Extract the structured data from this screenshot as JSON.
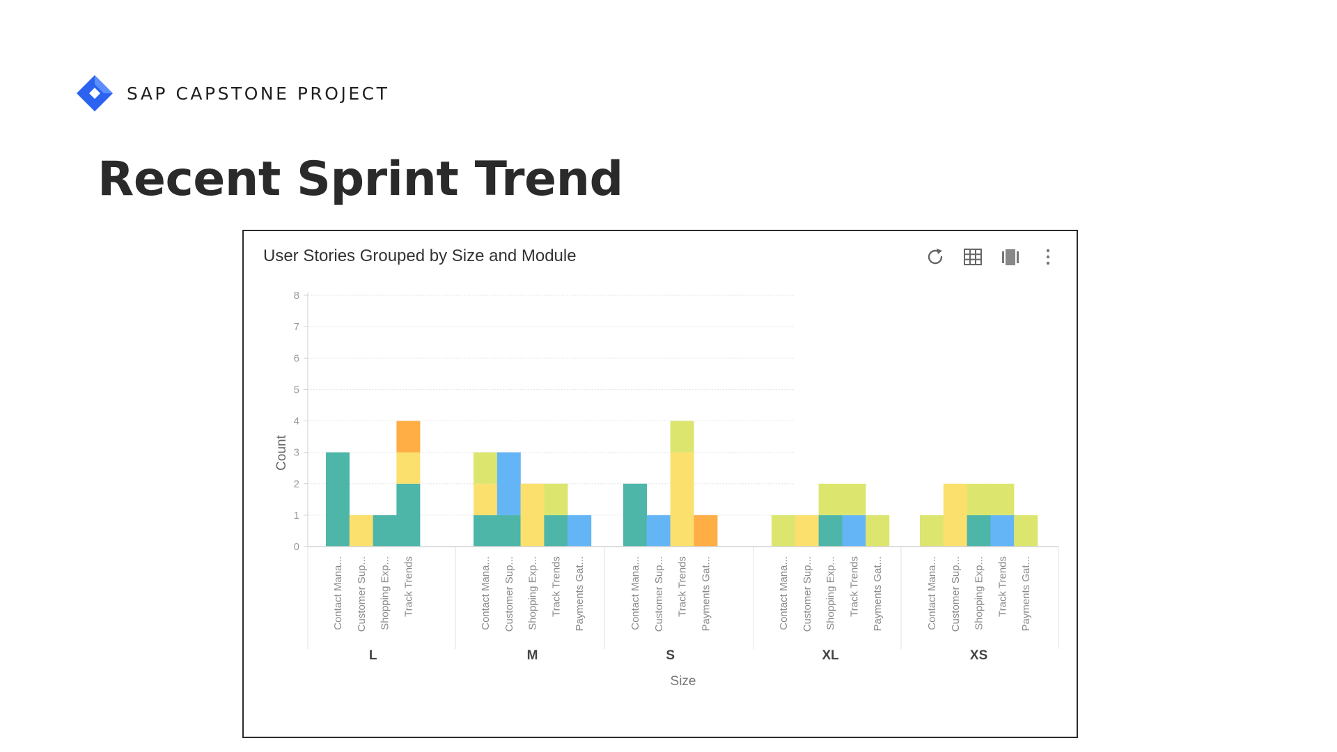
{
  "brand": {
    "name": "SAP CAPSTONE PROJECT",
    "logo_icon": "diamond-logo-icon"
  },
  "slide": {
    "title": "Recent Sprint Trend"
  },
  "card": {
    "title": "User Stories Grouped by Size and Module",
    "toolbar": [
      {
        "name": "refresh-icon",
        "label": "Refresh"
      },
      {
        "name": "table-view-icon",
        "label": "Table view"
      },
      {
        "name": "chart-view-icon",
        "label": "Chart view"
      },
      {
        "name": "more-options-icon",
        "label": "More options"
      }
    ]
  },
  "chart_data": {
    "type": "bar",
    "stacked": true,
    "title": "User Stories Grouped by Size and Module",
    "xlabel": "Size",
    "ylabel": "Count",
    "ylim": [
      0,
      8
    ],
    "yticks": [
      0,
      1,
      2,
      3,
      4,
      5,
      6,
      7,
      8
    ],
    "grid": true,
    "segment_colors": [
      "#4db6a8",
      "#fbe06e",
      "#dce66e",
      "#ffad45",
      "#64b5f6"
    ],
    "groups": [
      {
        "label": "L",
        "bars": [
          {
            "label": "Contact Mana...",
            "segments": [
              {
                "value": 3,
                "color": "#4db6a8"
              }
            ]
          },
          {
            "label": "Customer Sup...",
            "segments": [
              {
                "value": 1,
                "color": "#fbe06e"
              }
            ]
          },
          {
            "label": "Shopping Exp...",
            "segments": [
              {
                "value": 1,
                "color": "#4db6a8"
              }
            ]
          },
          {
            "label": "Track Trends",
            "segments": [
              {
                "value": 2,
                "color": "#4db6a8"
              },
              {
                "value": 1,
                "color": "#fbe06e"
              },
              {
                "value": 1,
                "color": "#ffad45"
              }
            ]
          }
        ]
      },
      {
        "label": "M",
        "bars": [
          {
            "label": "Contact Mana...",
            "segments": [
              {
                "value": 1,
                "color": "#4db6a8"
              },
              {
                "value": 1,
                "color": "#fbe06e"
              },
              {
                "value": 1,
                "color": "#dce66e"
              }
            ]
          },
          {
            "label": "Customer Sup...",
            "segments": [
              {
                "value": 1,
                "color": "#4db6a8"
              },
              {
                "value": 2,
                "color": "#64b5f6"
              }
            ]
          },
          {
            "label": "Shopping Exp...",
            "segments": [
              {
                "value": 2,
                "color": "#fbe06e"
              }
            ]
          },
          {
            "label": "Track Trends",
            "segments": [
              {
                "value": 1,
                "color": "#4db6a8"
              },
              {
                "value": 1,
                "color": "#dce66e"
              }
            ]
          },
          {
            "label": "Payments Gat...",
            "segments": [
              {
                "value": 1,
                "color": "#64b5f6"
              }
            ]
          }
        ]
      },
      {
        "label": "S",
        "bars": [
          {
            "label": "Contact Mana...",
            "segments": [
              {
                "value": 2,
                "color": "#4db6a8"
              }
            ]
          },
          {
            "label": "Customer Sup...",
            "segments": [
              {
                "value": 1,
                "color": "#64b5f6"
              }
            ]
          },
          {
            "label": "Track Trends",
            "segments": [
              {
                "value": 3,
                "color": "#fbe06e"
              },
              {
                "value": 1,
                "color": "#dce66e"
              }
            ]
          },
          {
            "label": "Payments Gat...",
            "segments": [
              {
                "value": 1,
                "color": "#ffad45"
              }
            ]
          }
        ]
      },
      {
        "label": "XL",
        "bars": [
          {
            "label": "Contact Mana...",
            "segments": [
              {
                "value": 1,
                "color": "#dce66e"
              }
            ]
          },
          {
            "label": "Customer Sup...",
            "segments": [
              {
                "value": 1,
                "color": "#fbe06e"
              }
            ]
          },
          {
            "label": "Shopping Exp...",
            "segments": [
              {
                "value": 1,
                "color": "#4db6a8"
              },
              {
                "value": 1,
                "color": "#dce66e"
              }
            ]
          },
          {
            "label": "Track Trends",
            "segments": [
              {
                "value": 1,
                "color": "#64b5f6"
              },
              {
                "value": 1,
                "color": "#dce66e"
              }
            ]
          },
          {
            "label": "Payments Gat...",
            "segments": [
              {
                "value": 1,
                "color": "#dce66e"
              }
            ]
          }
        ]
      },
      {
        "label": "XS",
        "bars": [
          {
            "label": "Contact Mana...",
            "segments": [
              {
                "value": 1,
                "color": "#dce66e"
              }
            ]
          },
          {
            "label": "Customer Sup...",
            "segments": [
              {
                "value": 2,
                "color": "#fbe06e"
              }
            ]
          },
          {
            "label": "Shopping Exp...",
            "segments": [
              {
                "value": 1,
                "color": "#4db6a8"
              },
              {
                "value": 1,
                "color": "#dce66e"
              }
            ]
          },
          {
            "label": "Track Trends",
            "segments": [
              {
                "value": 1,
                "color": "#64b5f6"
              },
              {
                "value": 1,
                "color": "#dce66e"
              }
            ]
          },
          {
            "label": "Payments Gat...",
            "segments": [
              {
                "value": 1,
                "color": "#dce66e"
              }
            ]
          }
        ]
      }
    ]
  }
}
